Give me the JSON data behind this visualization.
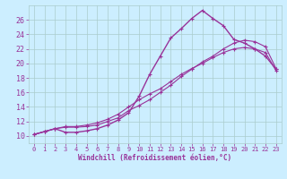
{
  "xlabel": "Windchill (Refroidissement éolien,°C)",
  "bg_color": "#cceeff",
  "grid_color": "#aacccc",
  "line_color": "#993399",
  "xlim": [
    -0.5,
    23.5
  ],
  "ylim": [
    9.0,
    28.0
  ],
  "xticks": [
    0,
    1,
    2,
    3,
    4,
    5,
    6,
    7,
    8,
    9,
    10,
    11,
    12,
    13,
    14,
    15,
    16,
    17,
    18,
    19,
    20,
    21,
    22,
    23
  ],
  "yticks": [
    10,
    12,
    14,
    16,
    18,
    20,
    22,
    24,
    26
  ],
  "line1_x": [
    0,
    1,
    2,
    3,
    4,
    5,
    6,
    7,
    8,
    9,
    10,
    11,
    12,
    13,
    14,
    15,
    16,
    17,
    18,
    19,
    20,
    21,
    22,
    23
  ],
  "line1_y": [
    10.2,
    10.6,
    11.0,
    10.5,
    10.5,
    10.7,
    11.0,
    11.5,
    12.2,
    13.2,
    15.5,
    18.5,
    21.0,
    23.5,
    24.8,
    26.2,
    27.3,
    26.2,
    25.2,
    23.3,
    22.8,
    22.0,
    21.0,
    19.2
  ],
  "line2_x": [
    0,
    1,
    2,
    3,
    4,
    5,
    6,
    7,
    8,
    9,
    10,
    11,
    12,
    13,
    14,
    15,
    16,
    17,
    18,
    19,
    20,
    21,
    22,
    23
  ],
  "line2_y": [
    10.2,
    10.6,
    11.0,
    11.2,
    11.2,
    11.3,
    11.5,
    12.0,
    12.5,
    13.5,
    14.2,
    15.0,
    16.0,
    17.0,
    18.2,
    19.2,
    20.2,
    21.0,
    22.0,
    22.8,
    23.2,
    23.0,
    22.3,
    19.3
  ],
  "line3_x": [
    0,
    1,
    2,
    3,
    4,
    5,
    6,
    7,
    8,
    9,
    10,
    11,
    12,
    13,
    14,
    15,
    16,
    17,
    18,
    19,
    20,
    21,
    22,
    23
  ],
  "line3_y": [
    10.2,
    10.6,
    11.0,
    11.3,
    11.3,
    11.5,
    11.8,
    12.3,
    13.0,
    14.0,
    15.0,
    15.8,
    16.5,
    17.5,
    18.5,
    19.3,
    20.0,
    20.8,
    21.5,
    22.0,
    22.2,
    22.0,
    21.5,
    19.0
  ]
}
